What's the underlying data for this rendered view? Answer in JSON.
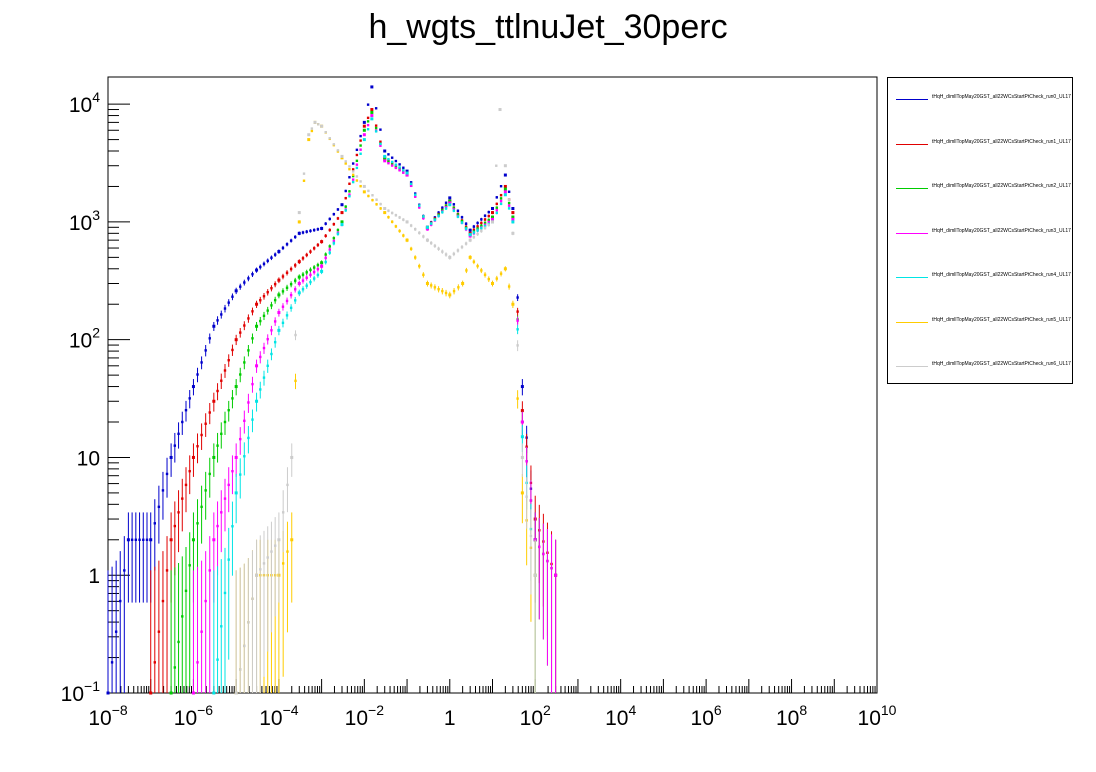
{
  "chart_data": {
    "type": "scatter",
    "title": "h_wgts_ttlnuJet_30perc",
    "xscale": "log",
    "yscale": "log",
    "xlim": [
      1e-08,
      10000000000.0
    ],
    "ylim": [
      0.1,
      17000
    ],
    "x_tick_labels": [
      {
        "base": "10",
        "exp": "−8",
        "value": 1e-08
      },
      {
        "base": "10",
        "exp": "−6",
        "value": 1e-06
      },
      {
        "base": "10",
        "exp": "−4",
        "value": 0.0001
      },
      {
        "base": "10",
        "exp": "−2",
        "value": 0.01
      },
      {
        "base": "1",
        "exp": "",
        "value": 1
      },
      {
        "base": "10",
        "exp": "2",
        "value": 100
      },
      {
        "base": "10",
        "exp": "4",
        "value": 10000.0
      },
      {
        "base": "10",
        "exp": "6",
        "value": 1000000.0
      },
      {
        "base": "10",
        "exp": "8",
        "value": 100000000.0
      },
      {
        "base": "10",
        "exp": "10",
        "value": 10000000000.0
      }
    ],
    "y_tick_labels": [
      {
        "base": "10",
        "exp": "−1",
        "value": 0.1
      },
      {
        "base": "1",
        "exp": "",
        "value": 1
      },
      {
        "base": "10",
        "exp": "",
        "value": 10
      },
      {
        "base": "10",
        "exp": "2",
        "value": 100
      },
      {
        "base": "10",
        "exp": "3",
        "value": 1000
      },
      {
        "base": "10",
        "exp": "4",
        "value": 10000
      }
    ],
    "legend_position": "top-right, outside plot",
    "series": [
      {
        "name": "tHqH_dimllTopMay20GST_all22WCsStartPtCheck_run0_UL17",
        "color": "#0000cc",
        "x": [
          1e-08,
          3e-08,
          1e-07,
          3e-07,
          1e-06,
          3e-06,
          1e-05,
          3e-05,
          0.0001,
          0.0003,
          0.001,
          0.003,
          0.01,
          0.015,
          0.03,
          0.1,
          0.3,
          1,
          3,
          10,
          20,
          30,
          50,
          100
        ],
        "y": [
          0.1,
          2,
          2,
          10,
          40,
          130,
          260,
          390,
          560,
          800,
          880,
          1400,
          7000,
          14000,
          4000,
          2700,
          900,
          1600,
          850,
          1300,
          2500,
          1300,
          40,
          2
        ]
      },
      {
        "name": "tHqH_dimllTopMay20GST_all22WCsStartPtCheck_run1_UL17",
        "color": "#e00000",
        "x": [
          1e-07,
          3e-07,
          1e-06,
          3e-06,
          1e-05,
          3e-05,
          0.0001,
          0.0003,
          0.001,
          0.003,
          0.01,
          0.015,
          0.03,
          0.1,
          0.3,
          1,
          3,
          10,
          20,
          30,
          50,
          100,
          300
        ],
        "y": [
          0.1,
          2,
          10,
          30,
          100,
          200,
          320,
          460,
          680,
          1200,
          6500,
          9000,
          3500,
          2600,
          900,
          1500,
          800,
          1200,
          2000,
          1200,
          25,
          3,
          1
        ]
      },
      {
        "name": "tHqH_dimllTopMay20GST_all22WCsStartPtCheck_run2_UL17",
        "color": "#00cc00",
        "x": [
          3e-07,
          1e-06,
          3e-06,
          1e-05,
          3e-05,
          0.0001,
          0.0003,
          0.001,
          0.003,
          0.01,
          0.015,
          0.03,
          0.1,
          0.3,
          1,
          3,
          10,
          20,
          30,
          50,
          100,
          300
        ],
        "y": [
          0.1,
          2,
          10,
          40,
          130,
          240,
          340,
          450,
          1000,
          6000,
          8500,
          3400,
          2500,
          880,
          1500,
          780,
          1100,
          1900,
          1100,
          20,
          2,
          1
        ]
      },
      {
        "name": "tHqH_dimllTopMay20GST_all22WCsStartPtCheck_run3_UL17",
        "color": "#ff00ff",
        "x": [
          1e-06,
          3e-06,
          1e-05,
          3e-05,
          0.0001,
          0.0003,
          0.001,
          0.003,
          0.01,
          0.015,
          0.03,
          0.1,
          0.3,
          1,
          3,
          10,
          20,
          30,
          50,
          100,
          300
        ],
        "y": [
          0.1,
          2,
          10,
          60,
          170,
          300,
          420,
          950,
          5500,
          8000,
          3300,
          2500,
          870,
          1450,
          760,
          1050,
          1800,
          1050,
          20,
          2,
          1
        ]
      },
      {
        "name": "tHqH_dimllTopMay20GST_all22WCsStartPtCheck_run4_UL17",
        "color": "#00e5e5",
        "x": [
          3e-06,
          1e-05,
          3e-05,
          0.0001,
          0.0003,
          0.001,
          0.003,
          0.01,
          0.015,
          0.03,
          0.1,
          0.3,
          1,
          3,
          10,
          20,
          30,
          50,
          100
        ],
        "y": [
          0.1,
          5,
          30,
          120,
          250,
          380,
          950,
          5000,
          7500,
          3600,
          2600,
          900,
          1400,
          780,
          1000,
          1700,
          1000,
          15,
          1
        ]
      },
      {
        "name": "tHqH_dimllTopMay20GST_all22WCsStartPtCheck_run5_UL17",
        "color": "#ffcc00",
        "x": [
          1e-05,
          3e-05,
          0.0001,
          0.0002,
          0.0003,
          0.0005,
          0.0007,
          0.001,
          0.003,
          0.01,
          0.03,
          0.1,
          0.3,
          1,
          2,
          3,
          10,
          20,
          30,
          50,
          100
        ],
        "y": [
          0.1,
          1,
          1,
          2,
          1000,
          5000,
          7000,
          6500,
          3500,
          1800,
          1200,
          700,
          300,
          240,
          300,
          500,
          300,
          400,
          200,
          5,
          1
        ]
      },
      {
        "name": "tHqH_dimllTopMay20GST_all22WCsStartPtCheck_run6_UL17",
        "color": "#cccccc",
        "x": [
          1e-05,
          3e-05,
          0.0001,
          0.0002,
          0.0003,
          0.0005,
          0.0007,
          0.001,
          0.003,
          0.01,
          0.03,
          0.1,
          0.3,
          1,
          3,
          10,
          15,
          20,
          30,
          50,
          100
        ],
        "y": [
          0.1,
          1,
          2,
          10,
          1200,
          5500,
          7000,
          6500,
          3600,
          2000,
          1300,
          1000,
          700,
          500,
          700,
          1000,
          9000,
          3000,
          800,
          10,
          1
        ]
      }
    ]
  }
}
